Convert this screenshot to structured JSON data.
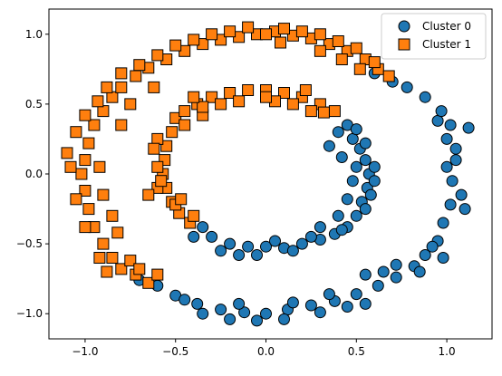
{
  "chart_data": {
    "type": "scatter",
    "title": "",
    "xlabel": "",
    "ylabel": "",
    "xlim": [
      -1.2,
      1.25
    ],
    "ylim": [
      -1.18,
      1.18
    ],
    "x_ticks": [
      -1.0,
      -0.5,
      0.0,
      0.5,
      1.0
    ],
    "y_ticks": [
      -1.0,
      -0.5,
      0.0,
      0.5,
      1.0
    ],
    "x_tick_labels": [
      "−1.0",
      "−0.5",
      "0.0",
      "0.5",
      "1.0"
    ],
    "y_tick_labels": [
      "−1.0",
      "−0.5",
      "0.0",
      "0.5",
      "1.0"
    ],
    "grid": false,
    "legend_position": "top-right",
    "series": [
      {
        "name": "Cluster 0",
        "marker": "circle",
        "color": "#1f77b4",
        "edge_color": "#000000",
        "points": [
          [
            0.95,
            0.38
          ],
          [
            1.0,
            0.25
          ],
          [
            1.05,
            0.1
          ],
          [
            1.03,
            -0.05
          ],
          [
            1.02,
            -0.22
          ],
          [
            0.98,
            -0.35
          ],
          [
            0.95,
            -0.48
          ],
          [
            0.88,
            -0.58
          ],
          [
            0.82,
            -0.66
          ],
          [
            0.72,
            -0.74
          ],
          [
            0.62,
            -0.8
          ],
          [
            0.5,
            -0.86
          ],
          [
            0.38,
            -0.91
          ],
          [
            0.25,
            -0.94
          ],
          [
            0.12,
            -0.97
          ],
          [
            0.0,
            -1.0
          ],
          [
            -0.12,
            -0.99
          ],
          [
            -0.25,
            -0.97
          ],
          [
            -0.38,
            -0.93
          ],
          [
            -0.5,
            -0.87
          ],
          [
            -0.6,
            -0.8
          ],
          [
            -0.7,
            -0.76
          ],
          [
            0.3,
            -0.99
          ],
          [
            -0.05,
            -1.05
          ],
          [
            -0.2,
            -1.04
          ],
          [
            0.65,
            -0.7
          ],
          [
            0.92,
            -0.52
          ],
          [
            1.0,
            0.05
          ],
          [
            1.08,
            -0.15
          ],
          [
            1.02,
            0.35
          ],
          [
            0.88,
            0.55
          ],
          [
            0.78,
            0.62
          ],
          [
            0.7,
            0.66
          ],
          [
            0.6,
            0.72
          ],
          [
            1.12,
            0.33
          ],
          [
            1.1,
            -0.25
          ],
          [
            0.45,
            -0.95
          ],
          [
            0.1,
            -1.04
          ],
          [
            -0.35,
            -1.0
          ],
          [
            -0.45,
            -0.9
          ],
          [
            0.85,
            -0.7
          ],
          [
            0.55,
            -0.93
          ],
          [
            0.98,
            -0.6
          ],
          [
            1.05,
            0.18
          ],
          [
            0.97,
            0.45
          ],
          [
            0.55,
            -0.72
          ],
          [
            0.15,
            -0.92
          ],
          [
            -0.15,
            -0.93
          ],
          [
            0.72,
            -0.65
          ],
          [
            0.35,
            -0.86
          ],
          [
            0.48,
            0.25
          ],
          [
            0.52,
            0.18
          ],
          [
            0.55,
            0.1
          ],
          [
            0.57,
            0.0
          ],
          [
            0.56,
            -0.1
          ],
          [
            0.53,
            -0.2
          ],
          [
            0.5,
            -0.3
          ],
          [
            0.45,
            -0.38
          ],
          [
            0.38,
            -0.43
          ],
          [
            0.3,
            -0.47
          ],
          [
            0.2,
            -0.5
          ],
          [
            0.1,
            -0.53
          ],
          [
            0.0,
            -0.52
          ],
          [
            -0.1,
            -0.52
          ],
          [
            -0.2,
            -0.5
          ],
          [
            -0.3,
            -0.45
          ],
          [
            -0.35,
            -0.38
          ],
          [
            0.4,
            0.3
          ],
          [
            0.45,
            0.35
          ],
          [
            0.5,
            0.32
          ],
          [
            0.6,
            0.05
          ],
          [
            0.6,
            -0.05
          ],
          [
            0.55,
            -0.25
          ],
          [
            0.42,
            -0.4
          ],
          [
            0.25,
            -0.45
          ],
          [
            0.15,
            -0.55
          ],
          [
            -0.05,
            -0.58
          ],
          [
            -0.25,
            -0.55
          ],
          [
            -0.4,
            -0.45
          ],
          [
            0.35,
            0.2
          ],
          [
            0.42,
            0.12
          ],
          [
            0.48,
            -0.05
          ],
          [
            0.45,
            -0.18
          ],
          [
            0.4,
            -0.3
          ],
          [
            0.3,
            -0.38
          ],
          [
            0.55,
            0.22
          ],
          [
            0.58,
            -0.15
          ],
          [
            0.5,
            0.05
          ],
          [
            0.05,
            -0.48
          ],
          [
            -0.15,
            -0.58
          ]
        ]
      },
      {
        "name": "Cluster 1",
        "marker": "square",
        "color": "#ff7f0e",
        "edge_color": "#000000",
        "points": [
          [
            -1.0,
            0.1
          ],
          [
            -1.02,
            0.0
          ],
          [
            -1.0,
            -0.12
          ],
          [
            -0.98,
            -0.25
          ],
          [
            -0.95,
            -0.38
          ],
          [
            -0.9,
            -0.5
          ],
          [
            -0.85,
            -0.6
          ],
          [
            -0.8,
            -0.68
          ],
          [
            -0.72,
            -0.72
          ],
          [
            -0.65,
            -0.78
          ],
          [
            -0.98,
            0.22
          ],
          [
            -0.95,
            0.35
          ],
          [
            -0.9,
            0.45
          ],
          [
            -0.85,
            0.55
          ],
          [
            -0.8,
            0.62
          ],
          [
            -0.72,
            0.7
          ],
          [
            -0.65,
            0.76
          ],
          [
            -0.55,
            0.82
          ],
          [
            -0.45,
            0.88
          ],
          [
            -0.35,
            0.93
          ],
          [
            -0.25,
            0.96
          ],
          [
            -0.15,
            0.98
          ],
          [
            -0.05,
            1.0
          ],
          [
            0.05,
            1.02
          ],
          [
            0.15,
            0.99
          ],
          [
            0.25,
            0.97
          ],
          [
            0.35,
            0.93
          ],
          [
            0.45,
            0.88
          ],
          [
            0.55,
            0.82
          ],
          [
            0.62,
            0.75
          ],
          [
            0.68,
            0.7
          ],
          [
            -1.1,
            0.15
          ],
          [
            -1.08,
            0.05
          ],
          [
            -1.05,
            -0.18
          ],
          [
            -1.0,
            -0.38
          ],
          [
            -0.92,
            -0.6
          ],
          [
            -0.88,
            -0.7
          ],
          [
            -0.75,
            -0.62
          ],
          [
            -0.7,
            -0.68
          ],
          [
            -0.6,
            -0.72
          ],
          [
            -1.05,
            0.3
          ],
          [
            -1.0,
            0.42
          ],
          [
            -0.93,
            0.52
          ],
          [
            -0.88,
            0.62
          ],
          [
            -0.8,
            0.72
          ],
          [
            -0.7,
            0.78
          ],
          [
            -0.6,
            0.85
          ],
          [
            -0.5,
            0.92
          ],
          [
            -0.4,
            0.96
          ],
          [
            -0.3,
            1.0
          ],
          [
            -0.2,
            1.02
          ],
          [
            -0.1,
            1.05
          ],
          [
            0.0,
            1.0
          ],
          [
            0.1,
            1.04
          ],
          [
            0.2,
            1.02
          ],
          [
            0.3,
            1.0
          ],
          [
            0.4,
            0.95
          ],
          [
            0.5,
            0.9
          ],
          [
            0.6,
            0.8
          ],
          [
            0.52,
            0.75
          ],
          [
            -0.92,
            0.05
          ],
          [
            -0.9,
            -0.15
          ],
          [
            -0.85,
            -0.3
          ],
          [
            -0.82,
            -0.42
          ],
          [
            -0.8,
            0.35
          ],
          [
            -0.75,
            0.5
          ],
          [
            -0.62,
            0.62
          ],
          [
            0.08,
            0.94
          ],
          [
            0.3,
            0.88
          ],
          [
            0.42,
            0.82
          ],
          [
            -0.5,
            0.4
          ],
          [
            -0.52,
            0.3
          ],
          [
            -0.55,
            0.2
          ],
          [
            -0.56,
            0.1
          ],
          [
            -0.57,
            0.0
          ],
          [
            -0.55,
            -0.1
          ],
          [
            -0.52,
            -0.2
          ],
          [
            -0.48,
            -0.28
          ],
          [
            -0.42,
            -0.35
          ],
          [
            -0.45,
            0.45
          ],
          [
            -0.38,
            0.5
          ],
          [
            -0.3,
            0.55
          ],
          [
            -0.2,
            0.58
          ],
          [
            -0.1,
            0.6
          ],
          [
            0.0,
            0.6
          ],
          [
            0.1,
            0.58
          ],
          [
            0.2,
            0.55
          ],
          [
            0.3,
            0.5
          ],
          [
            0.38,
            0.45
          ],
          [
            -0.6,
            0.25
          ],
          [
            -0.6,
            0.05
          ],
          [
            -0.6,
            -0.1
          ],
          [
            -0.5,
            -0.22
          ],
          [
            -0.45,
            0.35
          ],
          [
            -0.35,
            0.42
          ],
          [
            -0.25,
            0.5
          ],
          [
            -0.15,
            0.52
          ],
          [
            0.05,
            0.52
          ],
          [
            0.15,
            0.5
          ],
          [
            0.25,
            0.45
          ],
          [
            -0.62,
            0.18
          ],
          [
            -0.58,
            -0.05
          ],
          [
            -0.47,
            -0.18
          ],
          [
            -0.4,
            -0.3
          ],
          [
            -0.35,
            0.48
          ],
          [
            0.0,
            0.55
          ],
          [
            0.22,
            0.6
          ],
          [
            0.32,
            0.44
          ],
          [
            -0.65,
            -0.15
          ],
          [
            -0.4,
            0.55
          ]
        ]
      }
    ]
  }
}
